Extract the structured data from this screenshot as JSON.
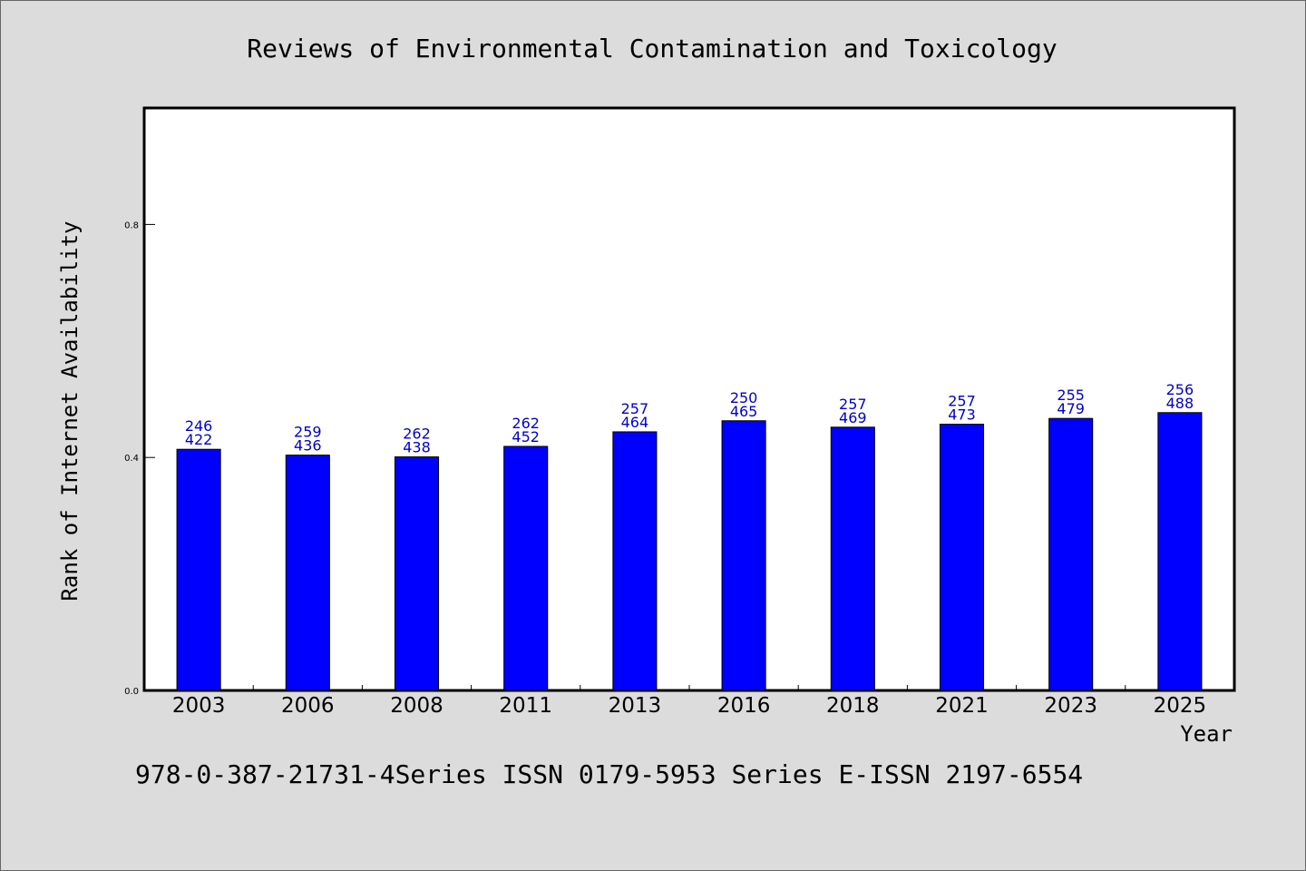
{
  "colors": {
    "bar": "#0000ff",
    "bar_stroke": "#000000",
    "data_label": "#0000cc",
    "plot_background": "#ffffff",
    "page_background": "#dcdcdc"
  },
  "footer": "978-0-387-21731-4Series ISSN 0179-5953 Series E-ISSN 2197-6554",
  "chart_data": {
    "type": "bar",
    "title": "Reviews of Environmental Contamination and Toxicology",
    "xlabel": "Year",
    "ylabel": "Rank of Internet Availability",
    "categories": [
      "2003",
      "2006",
      "2008",
      "2011",
      "2013",
      "2016",
      "2018",
      "2021",
      "2023",
      "2025"
    ],
    "values": [
      0.414,
      0.404,
      0.401,
      0.419,
      0.444,
      0.463,
      0.452,
      0.457,
      0.467,
      0.477
    ],
    "labels_top": [
      "246",
      "259",
      "262",
      "262",
      "257",
      "250",
      "257",
      "257",
      "255",
      "256"
    ],
    "labels_bottom": [
      "422",
      "436",
      "438",
      "452",
      "464",
      "465",
      "469",
      "473",
      "479",
      "488"
    ],
    "yticks": [
      "0.0",
      "0.4",
      "0.8"
    ],
    "ytick_values": [
      0.0,
      0.4,
      0.8
    ],
    "ylim": [
      0,
      1.0
    ],
    "grid": false,
    "legend": "none"
  }
}
